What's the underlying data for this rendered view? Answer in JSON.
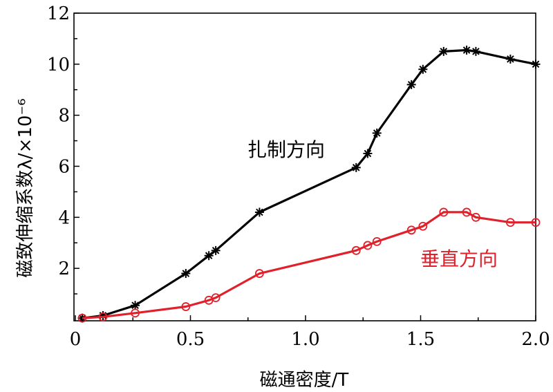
{
  "chart_data": {
    "type": "line",
    "xlabel": "磁通密度/T",
    "ylabel": "磁致伸缩系数λ/×10⁻⁶",
    "xlim": [
      0,
      2.0
    ],
    "ylim": [
      0,
      12
    ],
    "xticks": [
      "0",
      "0.5",
      "1.0",
      "1.5",
      "2.0"
    ],
    "yticks": [
      "2",
      "4",
      "6",
      "8",
      "10",
      "12"
    ],
    "grid": false,
    "series": [
      {
        "name": "扎制方向",
        "color": "#000000",
        "marker": "asterisk",
        "x": [
          0.03,
          0.12,
          0.26,
          0.48,
          0.58,
          0.61,
          0.8,
          1.22,
          1.27,
          1.31,
          1.46,
          1.51,
          1.6,
          1.7,
          1.74,
          1.89,
          2.0
        ],
        "y": [
          0.05,
          0.15,
          0.55,
          1.8,
          2.5,
          2.7,
          4.2,
          5.95,
          6.5,
          7.3,
          9.2,
          9.8,
          10.5,
          10.55,
          10.5,
          10.2,
          10.0
        ]
      },
      {
        "name": "垂直方向",
        "color": "#e0202a",
        "marker": "circle",
        "x": [
          0.03,
          0.12,
          0.26,
          0.48,
          0.58,
          0.61,
          0.8,
          1.22,
          1.27,
          1.31,
          1.46,
          1.51,
          1.6,
          1.7,
          1.74,
          1.89,
          2.0
        ],
        "y": [
          0.05,
          0.1,
          0.25,
          0.5,
          0.75,
          0.85,
          1.8,
          2.7,
          2.9,
          3.05,
          3.5,
          3.65,
          4.2,
          4.2,
          4.0,
          3.8,
          3.8
        ]
      }
    ]
  }
}
